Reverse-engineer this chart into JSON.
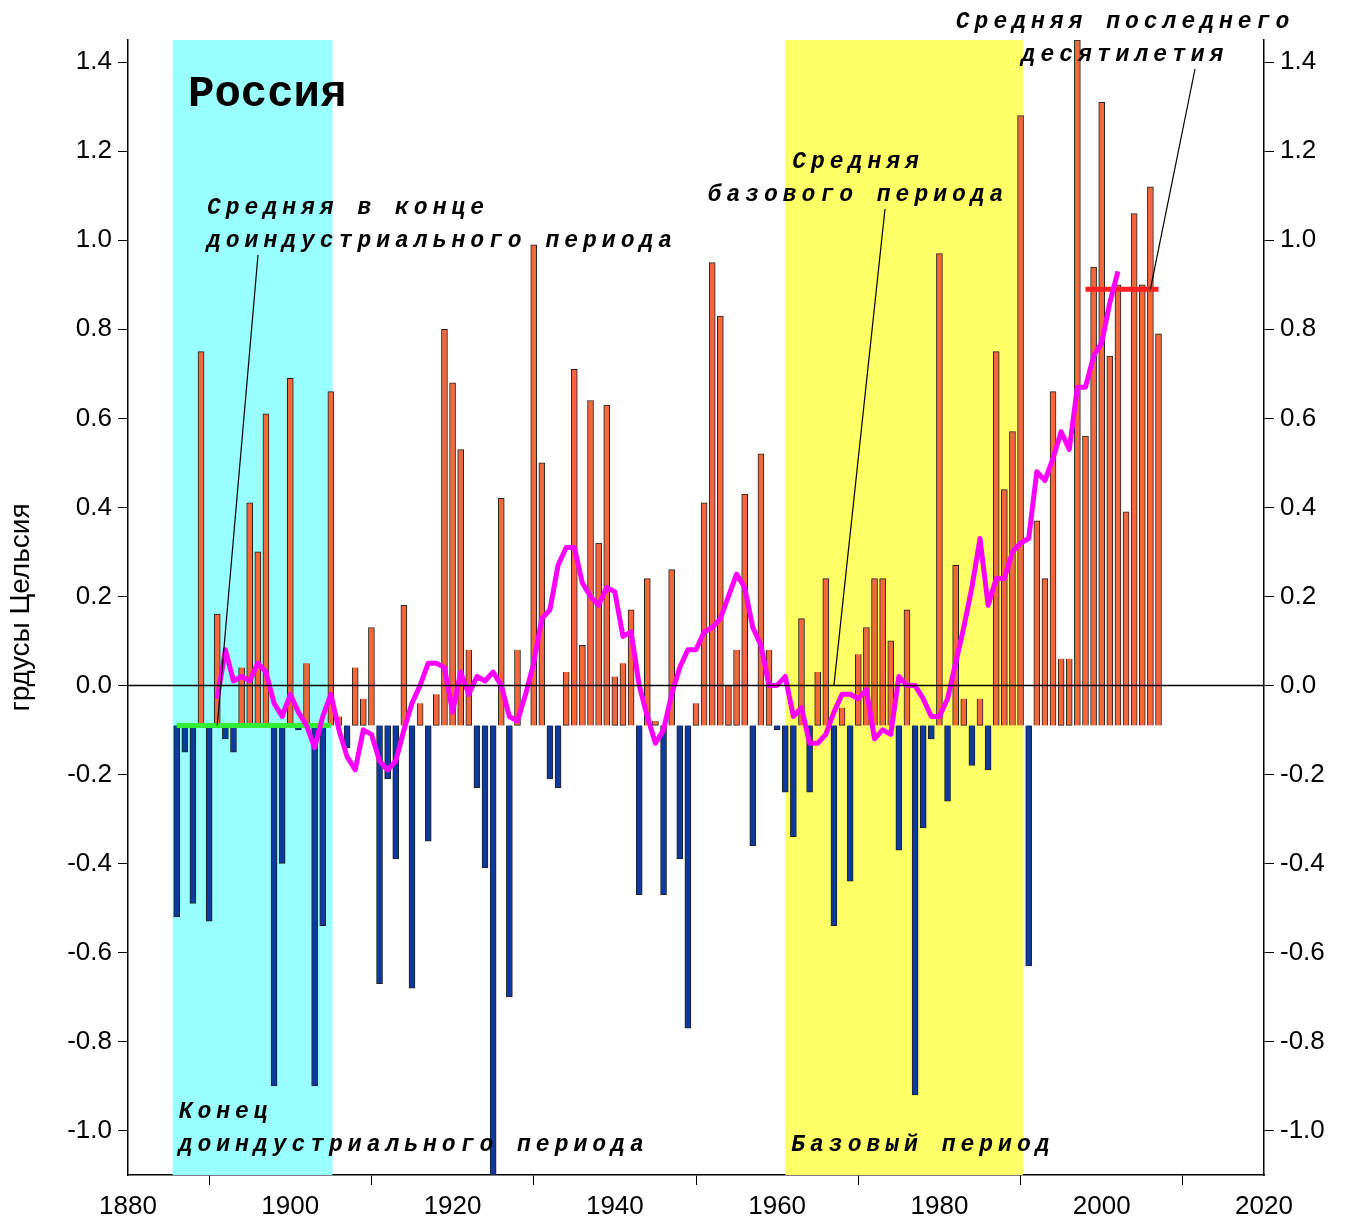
{
  "chart_data": {
    "type": "bar",
    "title": "Россия",
    "ylabel": "грдусы Цельсия",
    "xlim": [
      1880,
      2020
    ],
    "xticks": [
      1880,
      1900,
      1920,
      1940,
      1960,
      1980,
      2000,
      2020
    ],
    "ylim": [
      -1.1,
      1.45
    ],
    "yticks": [
      {
        "value": -1,
        "label": "-1.0"
      },
      {
        "value": -0.8,
        "label": "-0.8"
      },
      {
        "value": -0.6,
        "label": "-0.6"
      },
      {
        "value": -0.4,
        "label": "-0.4"
      },
      {
        "value": -0.2,
        "label": "-0.2"
      },
      {
        "value": 0,
        "label": "0.0"
      },
      {
        "value": 0.2,
        "label": "0.2"
      },
      {
        "value": 0.4,
        "label": "0.4"
      },
      {
        "value": 0.6,
        "label": "0.6"
      },
      {
        "value": 0.8,
        "label": "0.8"
      },
      {
        "value": 1,
        "label": "1.0"
      },
      {
        "value": 1.2,
        "label": "1.2"
      },
      {
        "value": 1.4,
        "label": "1.4"
      }
    ],
    "y2lim": [
      -1.1,
      1.45
    ],
    "y2ticks": [
      {
        "value": -1,
        "label": "-1.0"
      },
      {
        "value": -0.8,
        "label": "-0.8"
      },
      {
        "value": -0.6,
        "label": "-0.6"
      },
      {
        "value": -0.4,
        "label": "-0.4"
      },
      {
        "value": -0.2,
        "label": "-0.2"
      },
      {
        "value": 0,
        "label": "0.0"
      },
      {
        "value": 0.2,
        "label": "0.2"
      },
      {
        "value": 0.4,
        "label": "0.4"
      },
      {
        "value": 0.6,
        "label": "0.6"
      },
      {
        "value": 0.8,
        "label": "0.8"
      },
      {
        "value": 1,
        "label": "1.0"
      },
      {
        "value": 1.2,
        "label": "1.2"
      },
      {
        "value": 1.4,
        "label": "1.4"
      }
    ],
    "grid": false,
    "legend": false,
    "series": [
      {
        "color": "#f2683a",
        "x": [
          1889,
          1891,
          1894,
          1895,
          1896,
          1897,
          1900,
          1902,
          1905,
          1906,
          1908,
          1909,
          1910,
          1914,
          1916,
          1918,
          1919,
          1920,
          1921,
          1922,
          1926,
          1928,
          1930,
          1931,
          1934,
          1935,
          1936,
          1937,
          1938,
          1939,
          1940,
          1941,
          1942,
          1944,
          1945,
          1947,
          1950,
          1951,
          1952,
          1953,
          1954,
          1955,
          1956,
          1958,
          1959,
          1963,
          1965,
          1966,
          1968,
          1970,
          1971,
          1972,
          1973,
          1974,
          1976,
          1980,
          1982,
          1983,
          1985,
          1987,
          1988,
          1989,
          1990,
          1992,
          1993,
          1994,
          1995,
          1996,
          1997,
          1998,
          1999,
          2000,
          2001,
          2002,
          2003,
          2004,
          2005,
          2006,
          2007
        ],
        "values": [
          0.84,
          0.25,
          0.13,
          0.5,
          0.39,
          0.7,
          0.78,
          0.14,
          0.75,
          0.02,
          0.13,
          0.06,
          0.22,
          0.27,
          0.05,
          0.07,
          0.89,
          0.77,
          0.62,
          0.17,
          0.51,
          0.17,
          1.08,
          0.59,
          0.12,
          0.8,
          0.18,
          0.73,
          0.41,
          0.72,
          0.11,
          0.14,
          0.26,
          0.33,
          0.01,
          0.35,
          0.05,
          0.5,
          1.04,
          0.92,
          0.09,
          0.17,
          0.52,
          0.61,
          0.17,
          0.24,
          0.12,
          0.33,
          0.04,
          0.16,
          0.22,
          0.33,
          0.33,
          0.19,
          0.26,
          1.06,
          0.36,
          0.06,
          0.06,
          0.84,
          0.53,
          0.66,
          1.37,
          0.46,
          0.33,
          0.75,
          0.15,
          0.15,
          1.54,
          0.65,
          1.03,
          1.4,
          0.83,
          0.99,
          0.48,
          1.15,
          0.99,
          1.21,
          0.88
        ],
        "base": [
          -0.09,
          -0.09,
          -0.09,
          -0.09,
          -0.09,
          -0.09,
          -0.09,
          -0.09,
          -0.09,
          -0.09,
          -0.09,
          -0.09,
          -0.09,
          -0.09,
          -0.09,
          -0.09,
          -0.09,
          -0.09,
          -0.09,
          -0.09,
          -0.09,
          -0.09,
          -0.09,
          -0.09,
          -0.09,
          -0.09,
          -0.09,
          -0.09,
          -0.09,
          -0.09,
          -0.09,
          -0.09,
          -0.09,
          -0.09,
          -0.09,
          -0.09,
          -0.09,
          -0.09,
          -0.09,
          -0.09,
          -0.09,
          -0.09,
          -0.09,
          -0.09,
          -0.09,
          -0.09,
          -0.09,
          -0.09,
          -0.09,
          -0.09,
          -0.09,
          -0.09,
          -0.09,
          -0.09,
          -0.09,
          -0.09,
          -0.09,
          -0.09,
          -0.09,
          -0.09,
          -0.09,
          -0.09,
          -0.09,
          -0.09,
          -0.09,
          -0.09,
          -0.09,
          -0.09,
          -0.09,
          -0.09,
          -0.09,
          -0.09,
          -0.09,
          -0.09,
          -0.09,
          -0.09,
          -0.09,
          -0.09,
          -0.09
        ]
      },
      {
        "color": "#0e3a9e",
        "x": [
          1886,
          1887,
          1888,
          1890,
          1892,
          1893,
          1898,
          1899,
          1901,
          1903,
          1904,
          1907,
          1911,
          1912,
          1913,
          1915,
          1917,
          1923,
          1924,
          1925,
          1927,
          1932,
          1933,
          1943,
          1946,
          1948,
          1949,
          1957,
          1960,
          1961,
          1962,
          1964,
          1967,
          1969,
          1975,
          1977,
          1978,
          1979,
          1981,
          1984,
          1986,
          1991
        ],
        "values": [
          -0.43,
          -0.06,
          -0.4,
          -0.44,
          -0.03,
          -0.06,
          -0.81,
          -0.31,
          -0.01,
          -0.81,
          -0.45,
          -0.05,
          -0.58,
          -0.12,
          -0.3,
          -0.59,
          -0.26,
          -0.14,
          -0.32,
          -1.01,
          -0.61,
          -0.12,
          -0.14,
          -0.38,
          -0.38,
          -0.3,
          -0.68,
          -0.27,
          -0.01,
          -0.15,
          -0.25,
          -0.15,
          -0.45,
          -0.35,
          -0.28,
          -0.83,
          -0.23,
          -0.03,
          -0.17,
          -0.09,
          -0.1,
          -0.54
        ],
        "base": [
          -0.09,
          -0.09,
          -0.09,
          -0.09,
          -0.09,
          -0.09,
          -0.09,
          -0.09,
          -0.09,
          -0.09,
          -0.09,
          -0.09,
          -0.09,
          -0.09,
          -0.09,
          -0.09,
          -0.09,
          -0.09,
          -0.09,
          -0.09,
          -0.09,
          -0.09,
          -0.09,
          -0.09,
          -0.09,
          -0.09,
          -0.09,
          -0.09,
          -0.09,
          -0.09,
          -0.09,
          -0.09,
          -0.09,
          -0.09,
          -0.09,
          -0.09,
          -0.09,
          -0.09,
          -0.09,
          -0.09,
          -0.09,
          -0.09
        ]
      },
      {
        "type": "line",
        "color": "#ff00ff",
        "x": [
          1891,
          1892,
          1893,
          1894,
          1895,
          1896,
          1897,
          1898,
          1899,
          1900,
          1901,
          1902,
          1903,
          1904,
          1905,
          1906,
          1907,
          1908,
          1909,
          1910,
          1911,
          1912,
          1913,
          1914,
          1915,
          1916,
          1917,
          1918,
          1919,
          1920,
          1921,
          1922,
          1923,
          1924,
          1925,
          1926,
          1927,
          1928,
          1929,
          1930,
          1931,
          1932,
          1933,
          1934,
          1935,
          1936,
          1937,
          1938,
          1939,
          1940,
          1941,
          1942,
          1943,
          1944,
          1945,
          1946,
          1947,
          1948,
          1949,
          1950,
          1951,
          1952,
          1953,
          1954,
          1955,
          1956,
          1957,
          1958,
          1959,
          1960,
          1961,
          1962,
          1963,
          1964,
          1965,
          1966,
          1967,
          1968,
          1969,
          1970,
          1971,
          1972,
          1973,
          1974,
          1975,
          1976,
          1977,
          1978,
          1979,
          1980,
          1981,
          1982,
          1983,
          1984,
          1985,
          1986,
          1987,
          1988,
          1989,
          1990,
          1991,
          1992,
          1993,
          1994,
          1995,
          1996,
          1997,
          1998,
          1999,
          2000,
          2001,
          2002
        ],
        "values": [
          -0.03,
          0.08,
          0.01,
          0.02,
          0.01,
          0.05,
          0.03,
          -0.04,
          -0.07,
          -0.02,
          -0.06,
          -0.09,
          -0.14,
          -0.07,
          -0.02,
          -0.1,
          -0.16,
          -0.19,
          -0.1,
          -0.11,
          -0.17,
          -0.19,
          -0.17,
          -0.1,
          -0.04,
          0.0,
          0.05,
          0.05,
          0.04,
          -0.06,
          0.03,
          -0.02,
          0.02,
          0.01,
          0.03,
          0.0,
          -0.07,
          -0.08,
          -0.02,
          0.05,
          0.15,
          0.17,
          0.27,
          0.31,
          0.31,
          0.23,
          0.2,
          0.18,
          0.22,
          0.21,
          0.11,
          0.12,
          0.0,
          -0.07,
          -0.13,
          -0.1,
          -0.02,
          0.04,
          0.08,
          0.08,
          0.12,
          0.13,
          0.15,
          0.2,
          0.25,
          0.22,
          0.13,
          0.09,
          0.0,
          0.0,
          0.02,
          -0.07,
          -0.05,
          -0.13,
          -0.13,
          -0.11,
          -0.06,
          -0.02,
          -0.02,
          -0.03,
          -0.01,
          -0.12,
          -0.1,
          -0.11,
          0.02,
          0.0,
          0.0,
          -0.03,
          -0.07,
          -0.07,
          -0.03,
          0.05,
          0.13,
          0.22,
          0.33,
          0.18,
          0.24,
          0.24,
          0.3,
          0.32,
          0.33,
          0.48,
          0.46,
          0.51,
          0.57,
          0.53,
          0.67,
          0.67,
          0.74,
          0.77,
          0.86,
          0.93
        ]
      },
      {
        "type": "line",
        "color": "#33ee33",
        "x": [
          1886,
          1905
        ],
        "values": [
          -0.09,
          -0.09
        ]
      },
      {
        "type": "line",
        "color": "#ff2020",
        "x": [
          1998,
          2007
        ],
        "values": [
          0.89,
          0.89
        ]
      }
    ],
    "ref_lines": [
      {
        "axis": "y",
        "value": 0,
        "color": "#000000"
      }
    ],
    "bands": [
      {
        "axis": "x",
        "from": 1885.5,
        "to": 1905.2,
        "label": "Конец\nдоиндустриального периода",
        "color": "#99ffff"
      },
      {
        "axis": "x",
        "from": 1961,
        "to": 1990.3,
        "label": "Базовый период",
        "color": "#ffff66"
      }
    ],
    "annotations": [
      {
        "text": "Средняя в конце\nдоиндустриального периода",
        "x": 1891,
        "y": -0.09
      },
      {
        "text": "Средняя\nбазового периода",
        "x": 1967,
        "y": 0.0
      },
      {
        "text": "Средняя последнего\nдесятилетия",
        "x": 2006,
        "y": 0.89
      }
    ]
  }
}
